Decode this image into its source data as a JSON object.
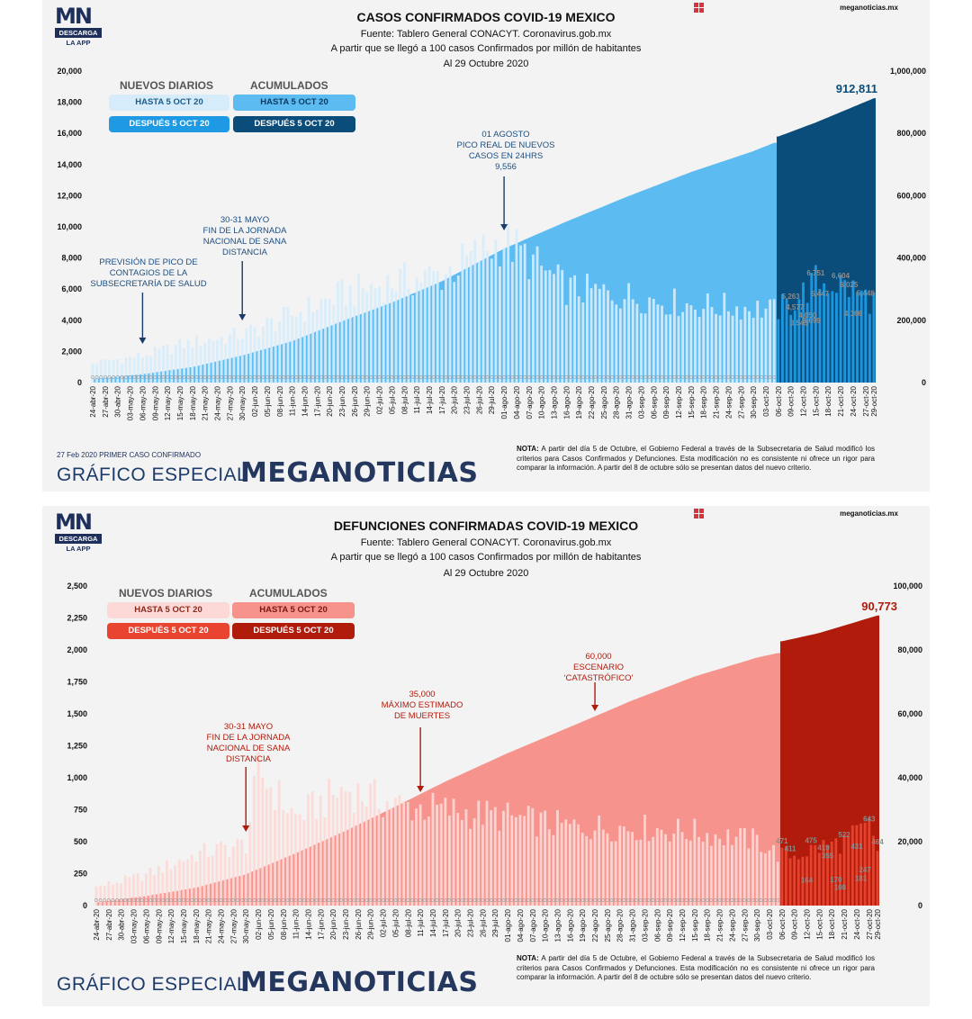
{
  "logo": {
    "mark": "MN",
    "descarga": "DESCARGA",
    "app": "LA APP"
  },
  "site": "meganoticias.mx",
  "colors": {
    "blue_before_daily": "#d6ecfb",
    "blue_after_daily": "#1e9ae4",
    "blue_before_cum": "#5cbcf2",
    "blue_after_cum": "#0a4c7a",
    "red_before_daily": "#fcd9d6",
    "red_after_daily": "#e8442f",
    "red_before_cum": "#f6938c",
    "red_after_cum": "#b01b0c"
  },
  "dates": [
    "24-abr-20",
    "27-abr-20",
    "30-abr-20",
    "03-may-20",
    "06-may-20",
    "09-may-20",
    "12-may-20",
    "15-may-20",
    "18-may-20",
    "21-may-20",
    "24-may-20",
    "27-may-20",
    "30-may-20",
    "02-jun-20",
    "05-jun-20",
    "08-jun-20",
    "11-jun-20",
    "14-jun-20",
    "17-jun-20",
    "20-jun-20",
    "23-jun-20",
    "26-jun-20",
    "29-jun-20",
    "02-jul-20",
    "05-jul-20",
    "08-jul-20",
    "11-jul-20",
    "14-jul-20",
    "17-jul-20",
    "20-jul-20",
    "23-jul-20",
    "26-jul-20",
    "29-jul-20",
    "01-ago-20",
    "04-ago-20",
    "07-ago-20",
    "10-ago-20",
    "13-ago-20",
    "16-ago-20",
    "19-ago-20",
    "22-ago-20",
    "25-ago-20",
    "28-ago-20",
    "31-ago-20",
    "03-sep-20",
    "06-sep-20",
    "09-sep-20",
    "12-sep-20",
    "15-sep-20",
    "18-sep-20",
    "21-sep-20",
    "24-sep-20",
    "27-sep-20",
    "30-sep-20",
    "03-oct-20",
    "06-oct-20",
    "09-oct-20",
    "12-oct-20",
    "15-oct-20",
    "18-oct-20",
    "21-oct-20",
    "24-oct-20",
    "27-oct-20",
    "29-oct-20"
  ],
  "cases": {
    "title": "CASOS CONFIRMADOS COVID-19 MEXICO",
    "source": "Fuente: Tablero General CONACYT. Coronavirus.gob.mx",
    "criterion": "A partir que se llegó a 100 casos Confirmados por millón de habitantes",
    "as_of": "Al 29 Octubre 2020",
    "legend": {
      "daily_header": "NUEVOS DIARIOS",
      "cum_header": "ACUMULADOS",
      "before": "HASTA 5 OCT 20",
      "after": "DESPUÉS 5 OCT 20"
    },
    "left_ticks": [
      "20,000",
      "18,000",
      "16,000",
      "14,000",
      "12,000",
      "10,000",
      "8,000",
      "6,000",
      "4,000",
      "2,000",
      "0"
    ],
    "right_ticks": [
      "1,000,000",
      "800,000",
      "600,000",
      "400,000",
      "200,000",
      "0"
    ],
    "final_total": "912,811",
    "annotations": {
      "peak_forecast": [
        "PREVISIÓN DE PICO DE",
        "CONTAGIOS DE LA",
        "SUBSECRETARÍA DE SALUD"
      ],
      "end_distance": [
        "30-31 MAYO",
        "FIN DE LA JORNADA",
        "NACIONAL DE SANA",
        "DISTANCIA"
      ],
      "real_peak": [
        "01 AGOSTO",
        "PICO REAL DE NUEVOS",
        "CASOS EN 24HRS",
        "9,556"
      ]
    },
    "after_labels": [
      "5,263",
      "4,577",
      "3,543",
      "4,050",
      "3,699",
      "6,751",
      "5,447",
      "6,604",
      "6,025",
      "4,166",
      "5,448"
    ],
    "footer_first": "27 Feb 2020 PRIMER CASO CONFIRMADO"
  },
  "deaths": {
    "title": "DEFUNCIONES CONFIRMADAS COVID-19 MEXICO",
    "source": "Fuente: Tablero General CONACYT. Coronavirus.gob.mx",
    "criterion": "A partir que se llegó a 100 casos Confirmados por millón de habitantes",
    "as_of": "Al 29 Octubre 2020",
    "legend": {
      "daily_header": "NUEVOS DIARIOS",
      "cum_header": "ACUMULADOS",
      "before": "HASTA 5 OCT 20",
      "after": "DESPUÉS 5 OCT 20"
    },
    "left_ticks": [
      "2,500",
      "2,250",
      "2,000",
      "1,750",
      "1,500",
      "1,250",
      "1,000",
      "750",
      "500",
      "250",
      "0"
    ],
    "right_ticks": [
      "100,000",
      "80,000",
      "60,000",
      "40,000",
      "20,000",
      "0"
    ],
    "final_total": "90,773",
    "annotations": {
      "end_distance": [
        "30-31 MAYO",
        "FIN DE LA JORNADA",
        "NACIONAL DE SANA",
        "DISTANCIA"
      ],
      "max_estimate": [
        "35,000",
        "MÁXIMO ESTIMADO",
        "DE MUERTES"
      ],
      "catastrophic": [
        "60,000",
        "ESCENARIO",
        "‘CATASTRÓFICO’"
      ]
    },
    "after_labels": [
      "471",
      "411",
      "164",
      "475",
      "419",
      "355",
      "170",
      "108",
      "522",
      "431",
      "181",
      "247",
      "643",
      "464"
    ]
  },
  "brand": {
    "special": "GRÁFICO ESPECIAL",
    "name": "MEGANOTICIAS"
  },
  "note": {
    "bold": "NOTA:",
    "text": " A partir del día 5 de Octubre, el Gobierno Federal a través de la Subsecretaria de Salud modificó los criterios para Casos Confirmados y Defunciones. Esta modificación no es consistente ni ofrece un rigor para comparar la información. A partir del 8 de octubre sólo se presentan datos del nuevo criterio."
  },
  "chart_data": [
    {
      "type": "bar",
      "title": "CASOS CONFIRMADOS COVID-19 MEXICO",
      "x_range": [
        "24-abr-20",
        "29-oct-20"
      ],
      "ylim_left": [
        0,
        20000
      ],
      "ylim_right": [
        0,
        1000000
      ],
      "series": [
        {
          "name": "NUEVOS DIARIOS",
          "axis": "left",
          "points": [
            [
              "24-abr-20",
              1300
            ],
            [
              "06-may-20",
              1800
            ],
            [
              "18-may-20",
              2700
            ],
            [
              "30-may-20",
              3200
            ],
            [
              "11-jun-20",
              4500
            ],
            [
              "23-jun-20",
              5900
            ],
            [
              "05-jul-20",
              6700
            ],
            [
              "17-jul-20",
              7200
            ],
            [
              "01-ago-20",
              9556
            ],
            [
              "16-ago-20",
              6300
            ],
            [
              "31-ago-20",
              5800
            ],
            [
              "15-sep-20",
              5200
            ],
            [
              "30-sep-20",
              5000
            ],
            [
              "05-oct-20",
              4800
            ],
            [
              "09-oct-20",
              5263
            ],
            [
              "15-oct-20",
              6751
            ],
            [
              "21-oct-20",
              6604
            ],
            [
              "29-oct-20",
              5448
            ]
          ]
        },
        {
          "name": "ACUMULADOS",
          "axis": "right",
          "points": [
            [
              "24-abr-20",
              12000
            ],
            [
              "06-may-20",
              27000
            ],
            [
              "18-may-20",
              50000
            ],
            [
              "30-may-20",
              87000
            ],
            [
              "11-jun-20",
              133000
            ],
            [
              "23-jun-20",
              197000
            ],
            [
              "05-jul-20",
              257000
            ],
            [
              "17-jul-20",
              325000
            ],
            [
              "01-ago-20",
              430000
            ],
            [
              "16-ago-20",
              517000
            ],
            [
              "31-ago-20",
              599000
            ],
            [
              "15-sep-20",
              676000
            ],
            [
              "30-sep-20",
              743000
            ],
            [
              "05-oct-20",
              770000
            ],
            [
              "06-oct-20",
              790000
            ],
            [
              "15-oct-20",
              835000
            ],
            [
              "29-oct-20",
              912811
            ]
          ]
        }
      ]
    },
    {
      "type": "bar",
      "title": "DEFUNCIONES CONFIRMADAS COVID-19 MEXICO",
      "x_range": [
        "24-abr-20",
        "29-oct-20"
      ],
      "ylim_left": [
        0,
        2500
      ],
      "ylim_right": [
        0,
        100000
      ],
      "series": [
        {
          "name": "NUEVOS DIARIOS",
          "axis": "left",
          "points": [
            [
              "24-abr-20",
              150
            ],
            [
              "06-may-20",
              250
            ],
            [
              "18-may-20",
              420
            ],
            [
              "30-may-20",
              500
            ],
            [
              "02-jun-20",
              1090
            ],
            [
              "11-jun-20",
              720
            ],
            [
              "23-jun-20",
              950
            ],
            [
              "05-jul-20",
              820
            ],
            [
              "17-jul-20",
              780
            ],
            [
              "01-ago-20",
              720
            ],
            [
              "16-ago-20",
              640
            ],
            [
              "31-ago-20",
              640
            ],
            [
              "15-sep-20",
              600
            ],
            [
              "30-sep-20",
              530
            ],
            [
              "05-oct-20",
              420
            ],
            [
              "09-oct-20",
              411
            ],
            [
              "15-oct-20",
              475
            ],
            [
              "21-oct-20",
              522
            ],
            [
              "27-oct-20",
              643
            ],
            [
              "29-oct-20",
              464
            ]
          ]
        },
        {
          "name": "ACUMULADOS",
          "axis": "right",
          "points": [
            [
              "24-abr-20",
              1000
            ],
            [
              "06-may-20",
              3000
            ],
            [
              "18-may-20",
              5600
            ],
            [
              "30-may-20",
              9800
            ],
            [
              "11-jun-20",
              16400
            ],
            [
              "23-jun-20",
              23400
            ],
            [
              "05-jul-20",
              31000
            ],
            [
              "17-jul-20",
              38800
            ],
            [
              "01-ago-20",
              47700
            ],
            [
              "16-ago-20",
              55900
            ],
            [
              "31-ago-20",
              64200
            ],
            [
              "15-sep-20",
              71700
            ],
            [
              "30-sep-20",
              77600
            ],
            [
              "05-oct-20",
              79000
            ],
            [
              "06-oct-20",
              82700
            ],
            [
              "15-oct-20",
              85300
            ],
            [
              "29-oct-20",
              90773
            ]
          ]
        }
      ]
    }
  ]
}
